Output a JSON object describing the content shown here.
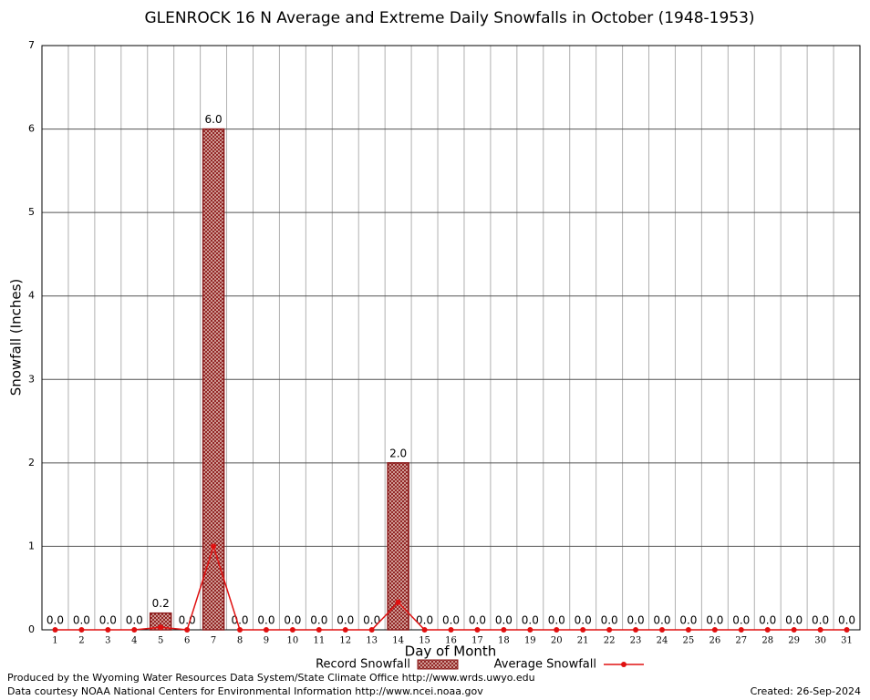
{
  "chart_data": {
    "type": "bar",
    "title": "GLENROCK 16 N Average and Extreme Daily Snowfalls in October (1948-1953)",
    "x_label": "Day of Month",
    "y_label": "Snowfall (Inches)",
    "categories": [
      "1",
      "2",
      "3",
      "4",
      "5",
      "6",
      "7",
      "8",
      "9",
      "10",
      "11",
      "12",
      "13",
      "14",
      "15",
      "16",
      "17",
      "18",
      "19",
      "20",
      "21",
      "22",
      "23",
      "24",
      "25",
      "26",
      "27",
      "28",
      "29",
      "30",
      "31"
    ],
    "series": [
      {
        "name": "Record Snowfall",
        "type": "bar",
        "color": "#8b1a1a",
        "values": [
          0,
          0,
          0,
          0,
          0.2,
          0,
          6.0,
          0,
          0,
          0,
          0,
          0,
          0,
          2.0,
          0,
          0,
          0,
          0,
          0,
          0,
          0,
          0,
          0,
          0,
          0,
          0,
          0,
          0,
          0,
          0,
          0
        ],
        "value_labels": [
          "0.0",
          "0.0",
          "0.0",
          "0.0",
          "0.2",
          "0.0",
          "6.0",
          "0.0",
          "0.0",
          "0.0",
          "0.0",
          "0.0",
          "0.0",
          "2.0",
          "0.0",
          "0.0",
          "0.0",
          "0.0",
          "0.0",
          "0.0",
          "0.0",
          "0.0",
          "0.0",
          "0.0",
          "0.0",
          "0.0",
          "0.0",
          "0.0",
          "0.0",
          "0.0",
          "0.0"
        ]
      },
      {
        "name": "Average Snowfall",
        "type": "line",
        "color": "#e01010",
        "values": [
          0,
          0,
          0,
          0,
          0.03,
          0,
          1.0,
          0,
          0,
          0,
          0,
          0,
          0,
          0.33,
          0,
          0,
          0,
          0,
          0,
          0,
          0,
          0,
          0,
          0,
          0,
          0,
          0,
          0,
          0,
          0,
          0
        ]
      }
    ],
    "ylim": [
      0,
      7
    ],
    "yticks": [
      0,
      1,
      2,
      3,
      4,
      5,
      6,
      7
    ],
    "grid": true,
    "credits": [
      "Produced by the Wyoming Water Resources Data System/State Climate Office http://www.wrds.uwyo.edu",
      "Data courtesy NOAA National Centers for Environmental Information http://www.ncei.noaa.gov"
    ],
    "created": "Created:  26-Sep-2024"
  }
}
